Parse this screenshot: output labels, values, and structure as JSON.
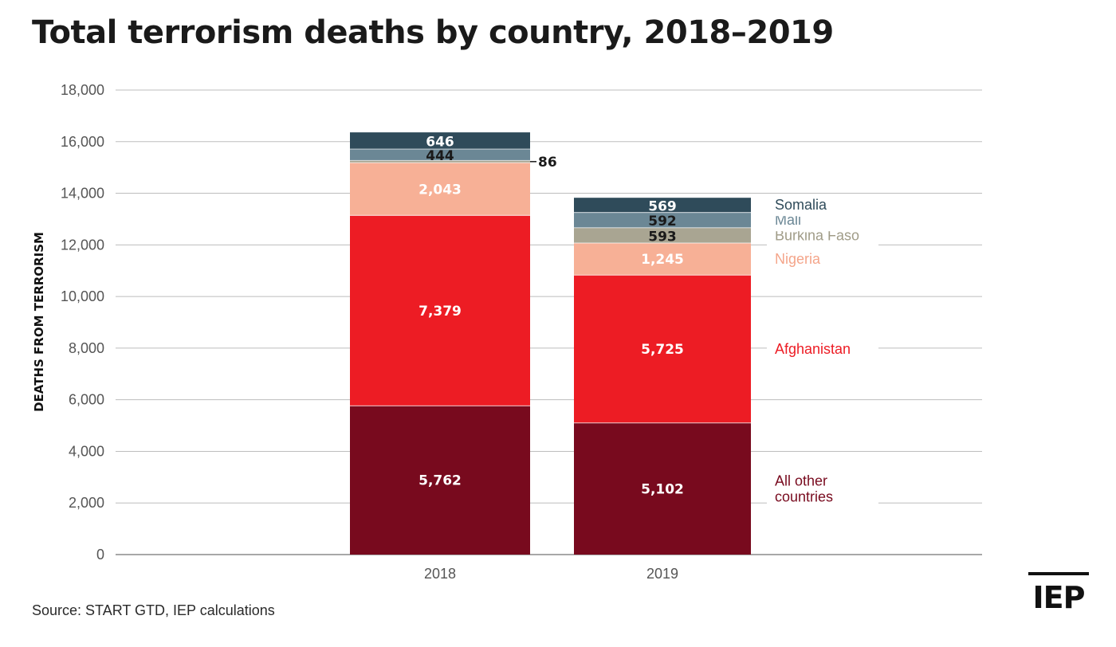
{
  "title": "Total terrorism deaths by country, 2018–2019",
  "source": "Source: START GTD, IEP calculations",
  "logo": "IEP",
  "chart_data": {
    "type": "bar",
    "stacked": true,
    "categories": [
      "2018",
      "2019"
    ],
    "ylabel": "DEATHS FROM TERRORISM",
    "xlabel": "",
    "ylim": [
      0,
      18000
    ],
    "yticks": [
      0,
      2000,
      4000,
      6000,
      8000,
      10000,
      12000,
      14000,
      16000,
      18000
    ],
    "ytick_labels": [
      "0",
      "2,000",
      "4,000",
      "6,000",
      "8,000",
      "10,000",
      "12,000",
      "14,000",
      "16,000",
      "18,000"
    ],
    "grid": true,
    "legend_position": "right",
    "series": [
      {
        "name": "All other countries",
        "legend_lines": [
          "All other",
          "countries"
        ],
        "color": "#780a1e",
        "text_color": "#ffffff",
        "legend_color": "#780a1e",
        "values": [
          5762,
          5102
        ],
        "labels": [
          "5,762",
          "5,102"
        ]
      },
      {
        "name": "Afghanistan",
        "legend_lines": [
          "Afghanistan"
        ],
        "color": "#ed1c24",
        "text_color": "#ffffff",
        "legend_color": "#ed1c24",
        "values": [
          7379,
          5725
        ],
        "labels": [
          "7,379",
          "5,725"
        ]
      },
      {
        "name": "Nigeria",
        "legend_lines": [
          "Nigeria"
        ],
        "color": "#f7b096",
        "text_color": "#ffffff",
        "legend_color": "#f4a58a",
        "values": [
          2043,
          1245
        ],
        "labels": [
          "2,043",
          "1,245"
        ]
      },
      {
        "name": "Burkina Faso",
        "legend_lines": [
          "Burkina Faso"
        ],
        "color": "#a9a592",
        "text_color": "#1a1a1a",
        "legend_color": "#a09c88",
        "values": [
          86,
          593
        ],
        "labels": [
          "86",
          "593"
        ]
      },
      {
        "name": "Mali",
        "legend_lines": [
          "Mali"
        ],
        "color": "#6b8795",
        "text_color": "#1a1a1a",
        "legend_color": "#6b8795",
        "values": [
          444,
          592
        ],
        "labels": [
          "444",
          "592"
        ]
      },
      {
        "name": "Somalia",
        "legend_lines": [
          "Somalia"
        ],
        "color": "#2f4b5a",
        "text_color": "#ffffff",
        "legend_color": "#2f4b5a",
        "values": [
          646,
          569
        ],
        "labels": [
          "646",
          "569"
        ]
      }
    ]
  }
}
